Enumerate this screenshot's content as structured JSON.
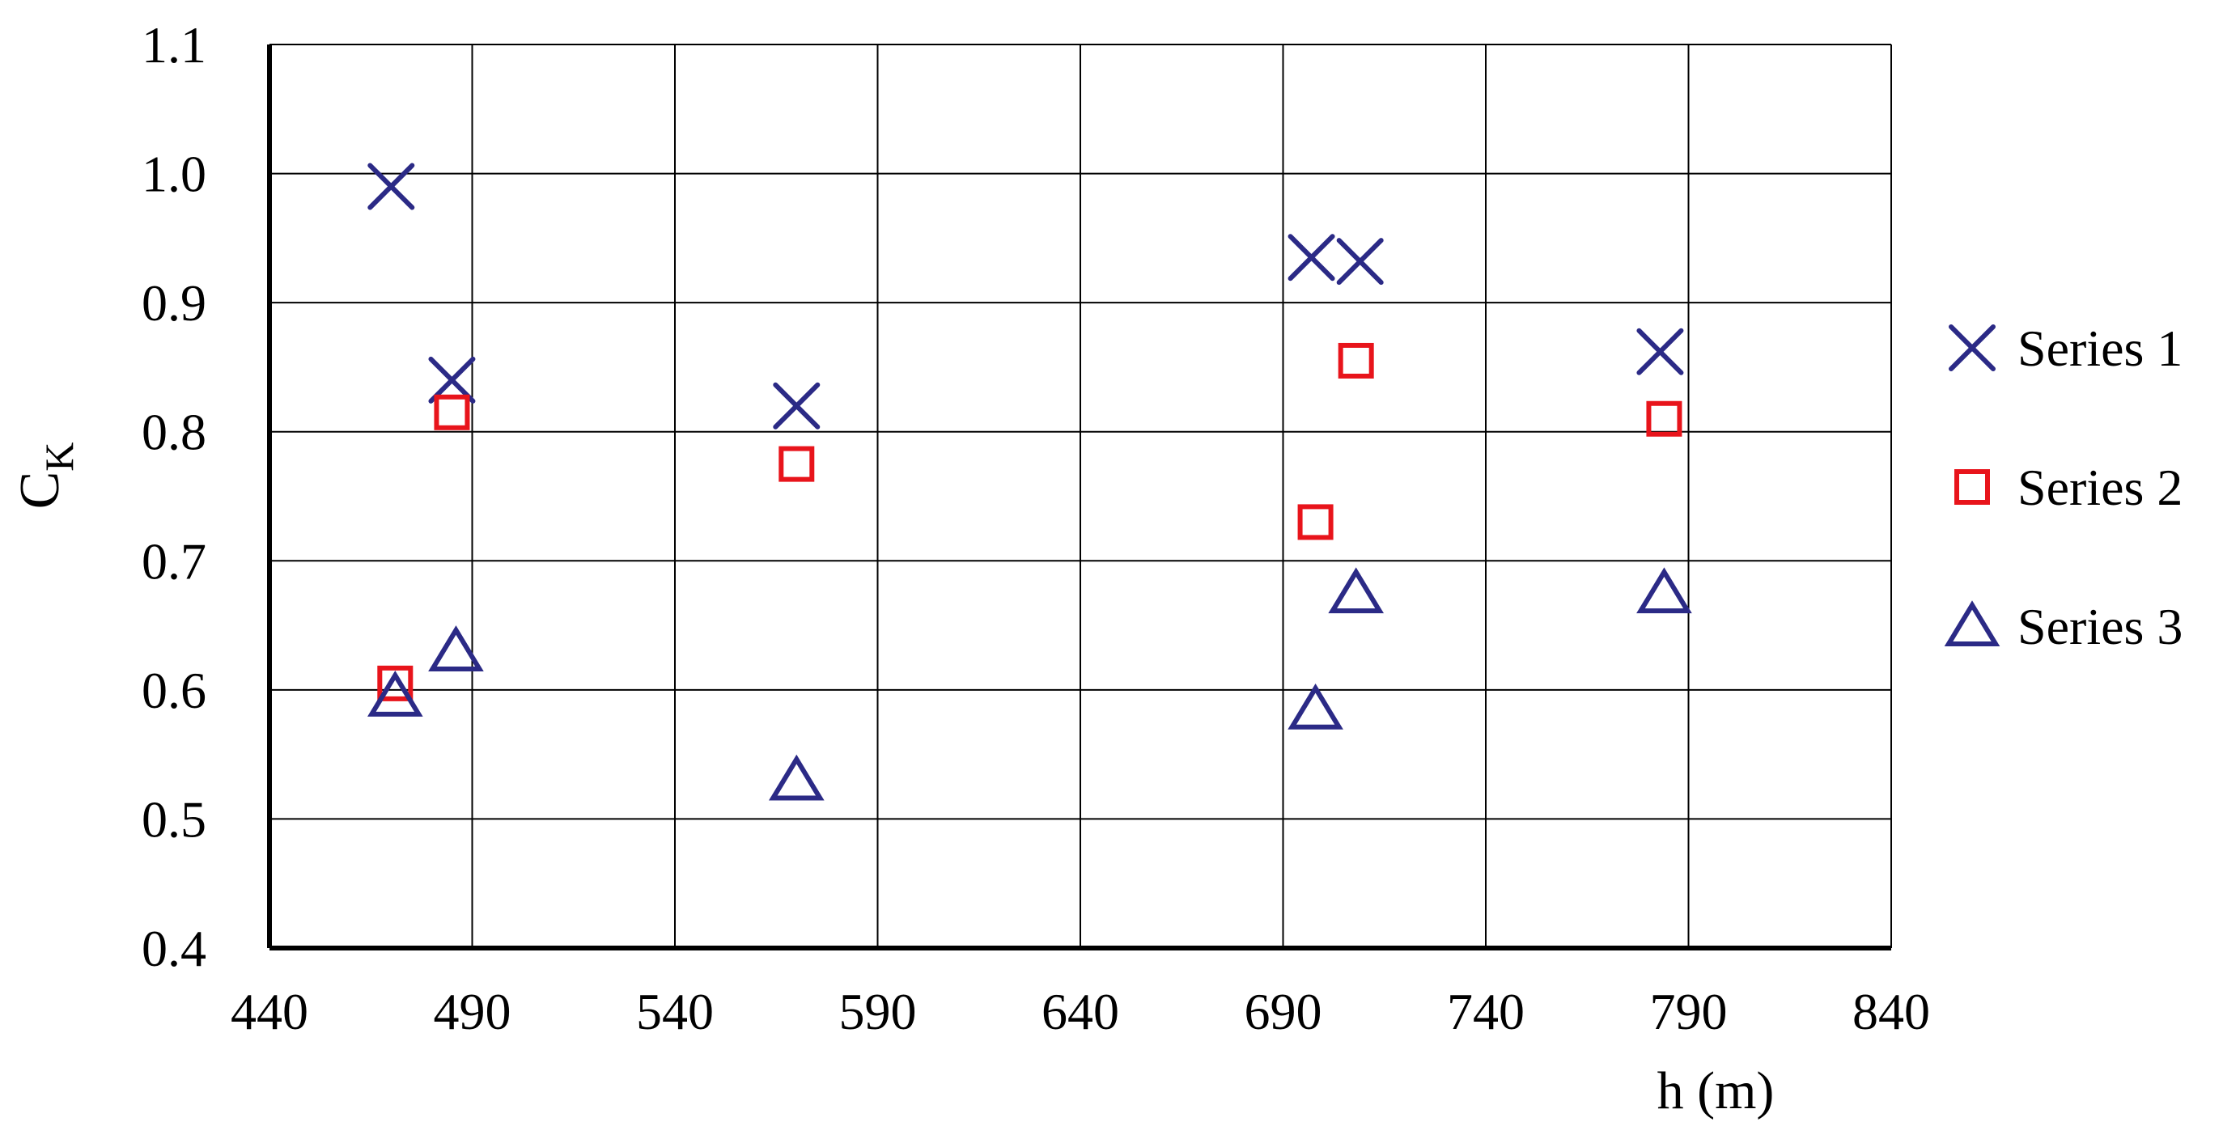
{
  "chart_data": {
    "type": "scatter",
    "xlabel": "h (m)",
    "ylabel": "C",
    "ylabel_subscript": "K",
    "xlim": [
      440,
      840
    ],
    "ylim": [
      0.4,
      1.1
    ],
    "xticks": [
      "440",
      "490",
      "540",
      "590",
      "640",
      "690",
      "740",
      "790",
      "840"
    ],
    "yticks": [
      "0.4",
      "0.5",
      "0.6",
      "0.7",
      "0.8",
      "0.9",
      "1.0",
      "1.1"
    ],
    "grid": true,
    "legend_position": "right",
    "series": [
      {
        "name": "Series 1",
        "marker": "x",
        "color": "#2b2a86",
        "points": [
          [
            470,
            0.99
          ],
          [
            485,
            0.84
          ],
          [
            570,
            0.82
          ],
          [
            697,
            0.935
          ],
          [
            709,
            0.932
          ],
          [
            783,
            0.862
          ]
        ]
      },
      {
        "name": "Series 2",
        "marker": "square",
        "color": "#e8141b",
        "points": [
          [
            471,
            0.605
          ],
          [
            485,
            0.815
          ],
          [
            570,
            0.775
          ],
          [
            698,
            0.73
          ],
          [
            708,
            0.855
          ],
          [
            784,
            0.81
          ]
        ]
      },
      {
        "name": "Series 3",
        "marker": "triangle",
        "color": "#2b2a86",
        "points": [
          [
            471,
            0.595
          ],
          [
            486,
            0.63
          ],
          [
            570,
            0.53
          ],
          [
            698,
            0.585
          ],
          [
            708,
            0.675
          ],
          [
            784,
            0.675
          ]
        ]
      }
    ]
  }
}
